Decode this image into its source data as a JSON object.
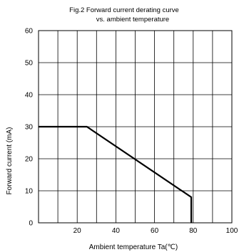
{
  "chart_data": {
    "type": "line",
    "title": "Fig.2  Forward current derating curve",
    "subtitle": "vs. ambient temperature",
    "xlabel": "Ambient temperature Ta(",
    "xlabel_unit": "℃",
    "xlabel_close": ")",
    "ylabel": "Forward current (mA)",
    "xlim": [
      0,
      100
    ],
    "ylim": [
      0,
      60
    ],
    "grid": true,
    "x_ticks": [
      20,
      40,
      60,
      80,
      100
    ],
    "x_tick_labels": [
      "20",
      "40",
      "60",
      "80",
      "100"
    ],
    "y_ticks": [
      0,
      10,
      20,
      30,
      40,
      50,
      60
    ],
    "y_tick_labels": [
      "0",
      "10",
      "20",
      "30",
      "40",
      "50",
      "60"
    ],
    "x_grid": [
      10,
      20,
      30,
      40,
      50,
      60,
      70,
      80,
      90
    ],
    "series": [
      {
        "x": [
          0,
          25,
          79,
          79
        ],
        "y": [
          30,
          30,
          8,
          0
        ]
      }
    ]
  }
}
